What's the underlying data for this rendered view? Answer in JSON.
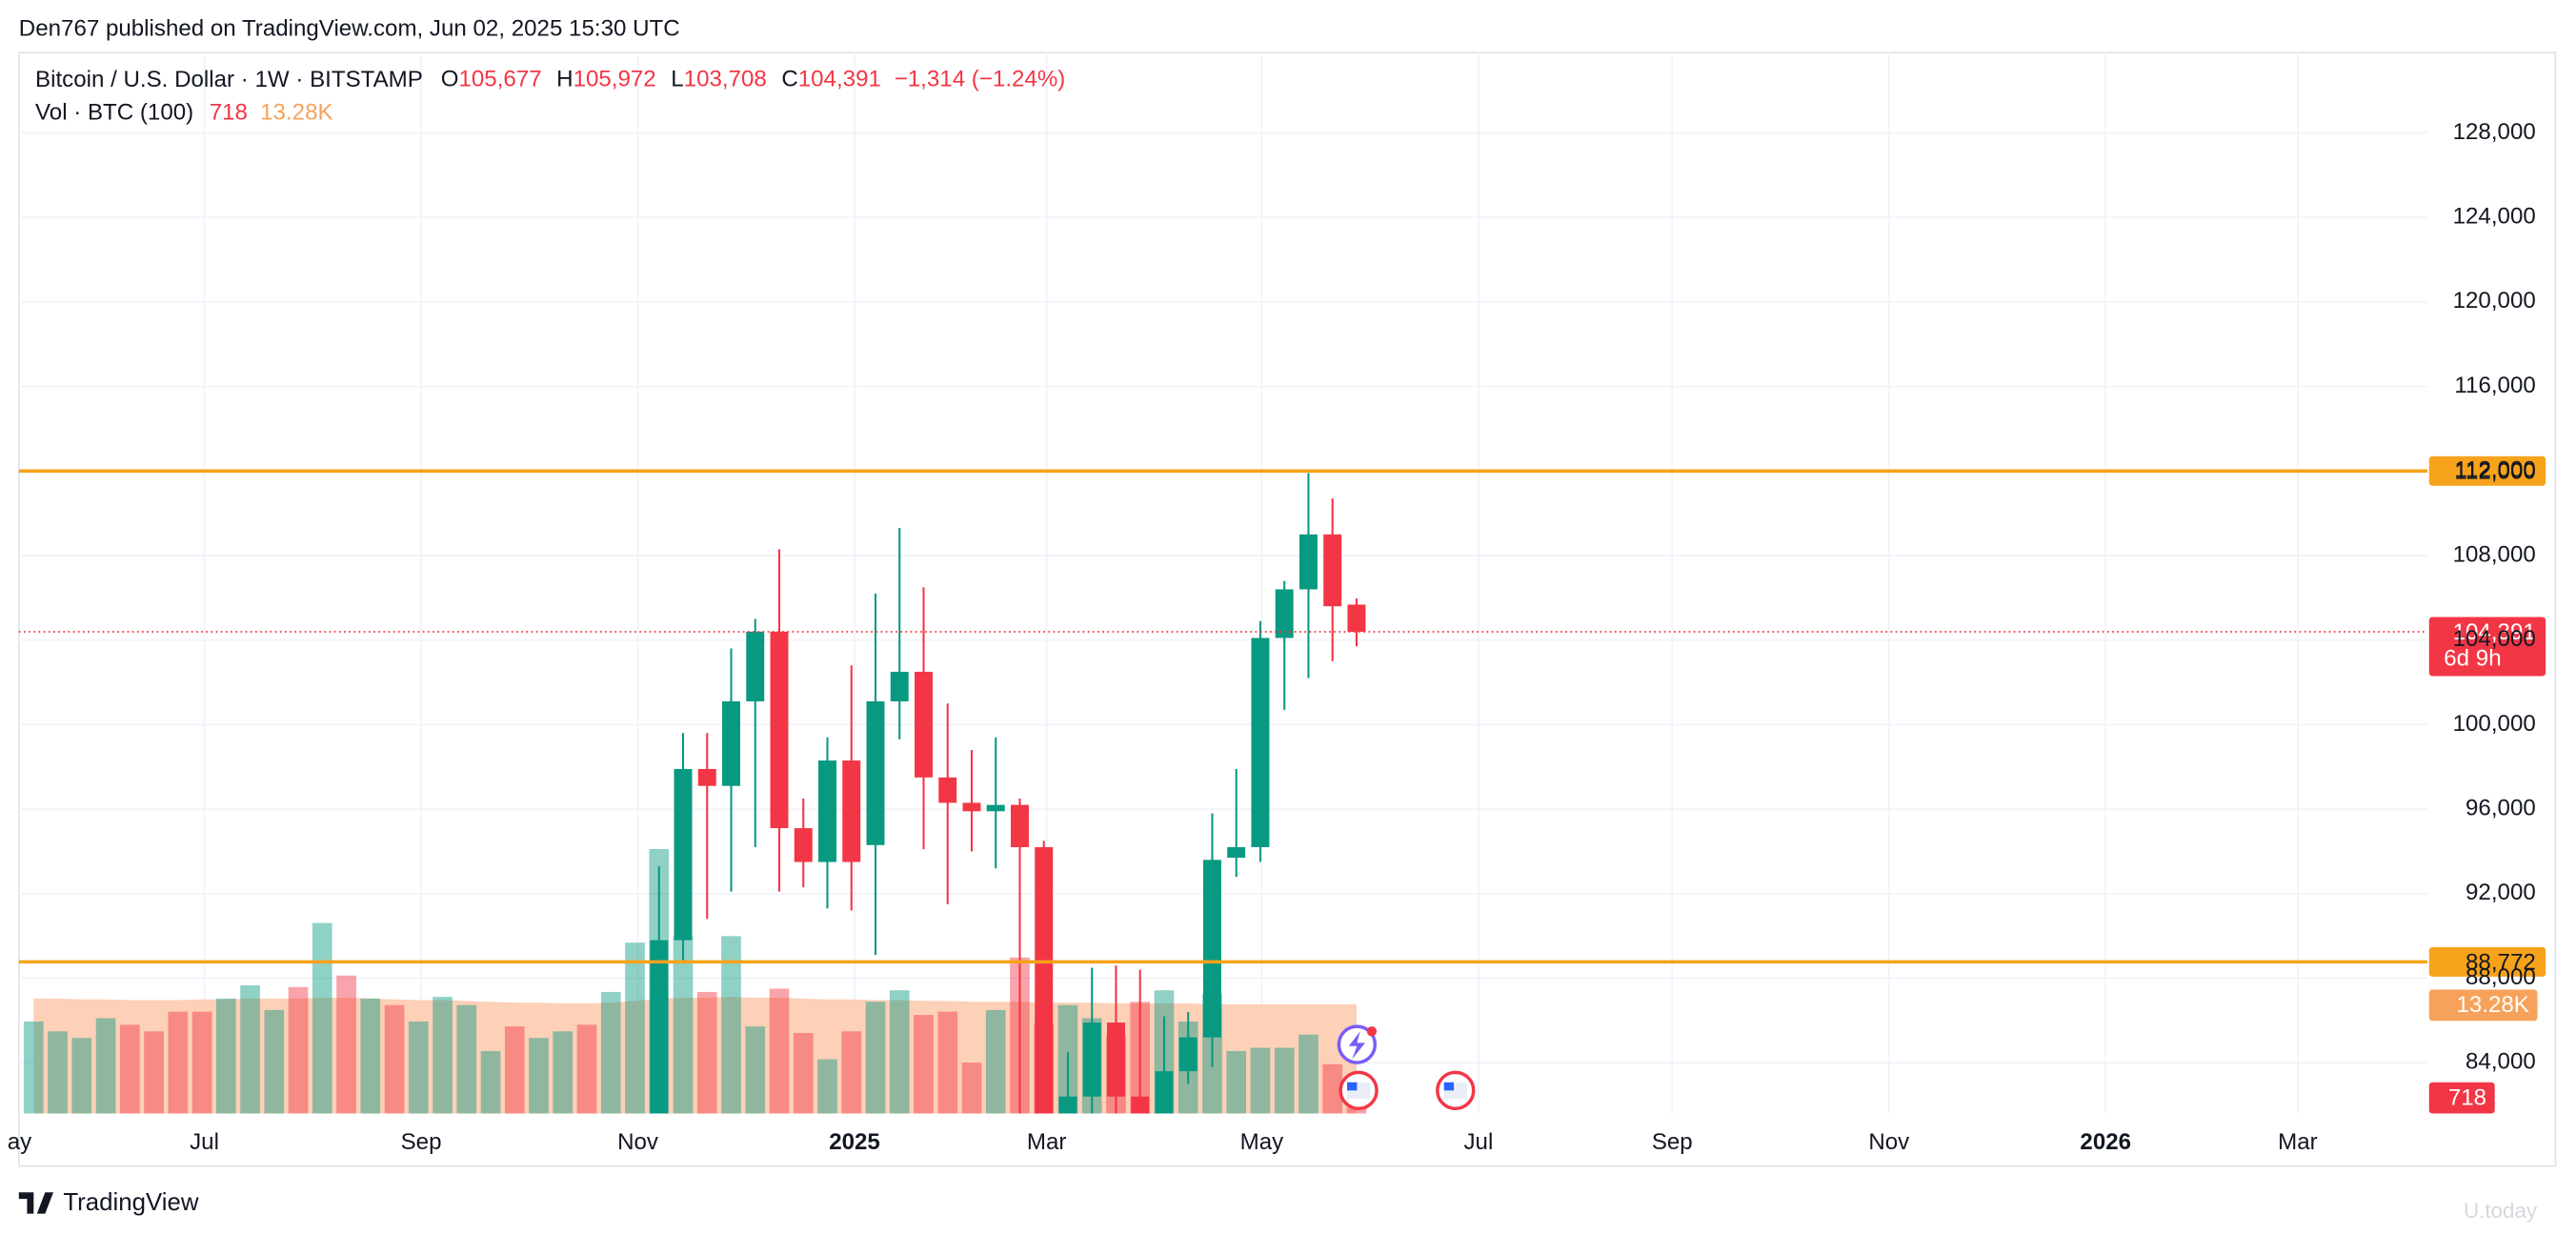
{
  "header": {
    "publisher": "Den767 published on TradingView.com, Jun 02, 2025 15:30 UTC",
    "symbol": "Bitcoin / U.S. Dollar · 1W · BITSTAMP",
    "ohlc": [
      {
        "key": "O",
        "value": "105,677"
      },
      {
        "key": "H",
        "value": "105,972"
      },
      {
        "key": "L",
        "value": "103,708"
      },
      {
        "key": "C",
        "value": "104,391"
      }
    ],
    "change": "−1,314 (−1.24%)",
    "volume_label": "Vol · BTC (100)",
    "volume_value": "718",
    "volume_ma": "13.28K"
  },
  "chart_data": {
    "type": "candlestick",
    "up_color": "#089981",
    "down_color": "#f23645",
    "ylim": [
      81600,
      131800
    ],
    "yticks": [
      {
        "value": 84000,
        "label": "84,000"
      },
      {
        "value": 88000,
        "label": "88,000"
      },
      {
        "value": 92000,
        "label": "92,000"
      },
      {
        "value": 96000,
        "label": "96,000"
      },
      {
        "value": 100000,
        "label": "100,000"
      },
      {
        "value": 104000,
        "label": "104,000"
      },
      {
        "value": 108000,
        "label": "108,000"
      },
      {
        "value": 112000,
        "label": "112,000"
      },
      {
        "value": 116000,
        "label": "116,000"
      },
      {
        "value": 120000,
        "label": "120,000"
      },
      {
        "value": 124000,
        "label": "124,000"
      },
      {
        "value": 128000,
        "label": "128,000"
      }
    ],
    "x_labels": [
      "ay",
      "Jul",
      "Sep",
      "Nov",
      "2025",
      "Mar",
      "May",
      "Jul",
      "Sep",
      "Nov",
      "2026",
      "Mar"
    ],
    "open": [
      null,
      null,
      null,
      null,
      null,
      null,
      null,
      null,
      null,
      null,
      null,
      null,
      null,
      null,
      null,
      null,
      null,
      null,
      null,
      null,
      null,
      null,
      null,
      null,
      null,
      null,
      80400,
      89800,
      97900,
      97100,
      101100,
      104400,
      95100,
      93500,
      98300,
      94300,
      101100,
      102500,
      97500,
      96300,
      95900,
      96200,
      94200,
      80700,
      82400,
      85900,
      82400,
      81000,
      83600,
      85200,
      93700,
      94200,
      104100,
      106400,
      109000,
      105677
    ],
    "high": [
      null,
      null,
      null,
      null,
      null,
      null,
      null,
      null,
      null,
      null,
      null,
      null,
      null,
      null,
      null,
      null,
      null,
      null,
      null,
      null,
      null,
      null,
      null,
      null,
      null,
      null,
      93300,
      99600,
      99600,
      103600,
      105000,
      108300,
      96500,
      99400,
      102800,
      106200,
      109300,
      106500,
      101000,
      98800,
      99400,
      96500,
      94500,
      84500,
      88500,
      88600,
      88400,
      86200,
      86400,
      95800,
      97900,
      104900,
      106800,
      111900,
      110700,
      105972
    ],
    "low": [
      null,
      null,
      null,
      null,
      null,
      null,
      null,
      null,
      null,
      null,
      null,
      null,
      null,
      null,
      null,
      null,
      null,
      null,
      null,
      null,
      null,
      null,
      null,
      null,
      null,
      null,
      80200,
      88700,
      90800,
      92100,
      94200,
      92100,
      92300,
      91300,
      91200,
      89100,
      99300,
      94100,
      91500,
      94000,
      93200,
      78500,
      78200,
      76600,
      80000,
      81000,
      74500,
      79000,
      83000,
      83800,
      92800,
      93500,
      100700,
      102200,
      103000,
      103708
    ],
    "close": [
      null,
      null,
      null,
      null,
      null,
      null,
      null,
      null,
      null,
      null,
      null,
      null,
      null,
      null,
      null,
      null,
      null,
      null,
      null,
      null,
      null,
      null,
      null,
      null,
      null,
      null,
      89800,
      97900,
      97100,
      101100,
      104400,
      95100,
      93500,
      98300,
      93500,
      101100,
      102500,
      97500,
      96300,
      95900,
      96200,
      94200,
      80700,
      82400,
      85900,
      82400,
      81000,
      83600,
      85200,
      93600,
      94200,
      104100,
      106400,
      109000,
      105600,
      104391
    ],
    "volume": [
      11200,
      10000,
      9200,
      11600,
      10800,
      10000,
      12400,
      12400,
      14000,
      15600,
      12600,
      15400,
      23200,
      16800,
      14000,
      13200,
      11200,
      14200,
      13200,
      7600,
      10600,
      9200,
      10000,
      10800,
      14800,
      20800,
      32200,
      21600,
      14800,
      21600,
      10600,
      15200,
      9800,
      6600,
      10000,
      13600,
      15000,
      12000,
      12400,
      6200,
      12600,
      19000,
      11000,
      13200,
      11600,
      9600,
      13600,
      15000,
      11200,
      14600,
      7600,
      8000,
      8000,
      9600,
      6000,
      718
    ],
    "volume_up": [
      true,
      true,
      true,
      true,
      false,
      false,
      false,
      false,
      true,
      true,
      true,
      false,
      true,
      false,
      true,
      false,
      true,
      true,
      true,
      true,
      false,
      true,
      true,
      false,
      true,
      true,
      true,
      true,
      false,
      true,
      true,
      false,
      false,
      true,
      false,
      true,
      true,
      false,
      false,
      false,
      true,
      false,
      false,
      true,
      true,
      false,
      false,
      true,
      true,
      true,
      true,
      true,
      true,
      true,
      false,
      false
    ],
    "volume_ma": [
      14000,
      14000,
      13900,
      13900,
      13800,
      13800,
      13800,
      13900,
      13900,
      14000,
      14000,
      14000,
      14100,
      14100,
      14000,
      13900,
      13800,
      13800,
      13700,
      13600,
      13500,
      13500,
      13400,
      13400,
      13500,
      13700,
      14000,
      14100,
      14100,
      14200,
      14100,
      14100,
      14000,
      13900,
      13900,
      13800,
      13800,
      13700,
      13700,
      13600,
      13600,
      13600,
      13500,
      13500,
      13500,
      13400,
      13400,
      13400,
      13400,
      13300,
      13300,
      13300,
      13300,
      13300,
      13300,
      13280
    ],
    "volume_ma_color": "#fdd0b8",
    "levels": [
      {
        "value": 112000,
        "label": "112,000",
        "color": "#f7a21b"
      },
      {
        "value": 88772,
        "label": "88,772",
        "color": "#f7a21b"
      }
    ],
    "last_price": {
      "value": 104391,
      "label": "104,391",
      "countdown": "6d 9h"
    },
    "volume_tags": [
      {
        "value": 13280,
        "label": "13.28K",
        "color": "#f7a25a"
      },
      {
        "value": 718,
        "label": "718",
        "color": "#f23645"
      }
    ]
  },
  "footer": {
    "brand": "TradingView",
    "watermark": "U.today"
  }
}
